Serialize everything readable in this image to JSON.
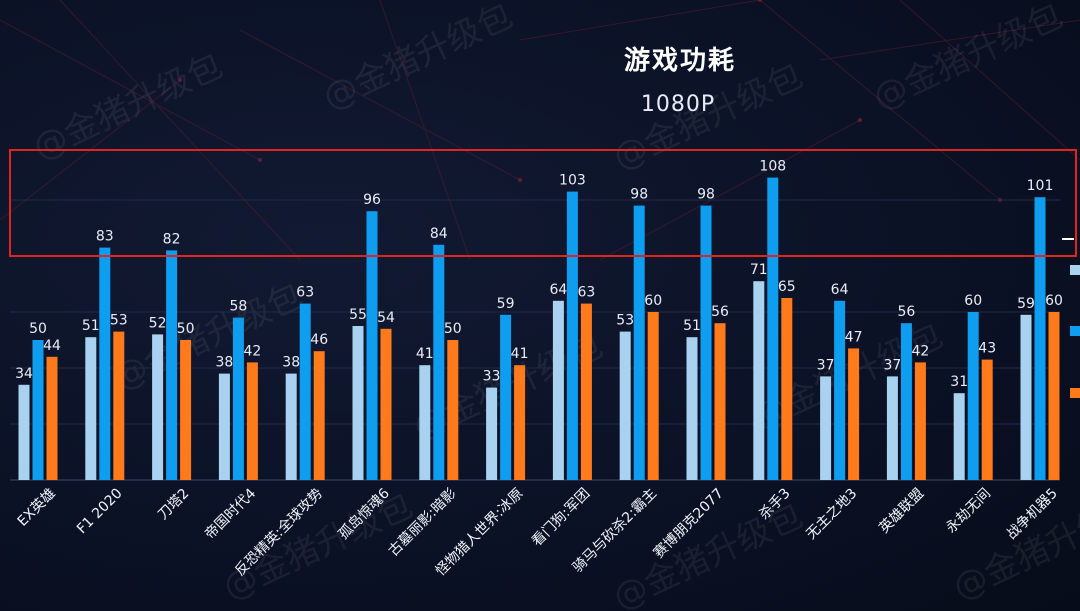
{
  "chart_data": {
    "type": "bar",
    "title": "游戏功耗",
    "subtitle": "1080P",
    "xlabel": "",
    "ylabel": "",
    "ylim": [
      0,
      150
    ],
    "grid": true,
    "categories": [
      "EX英雄",
      "F1 2020",
      "刀塔2",
      "帝国时代4",
      "反恐精英:全球攻势",
      "孤岛惊魂6",
      "古墓丽影:暗影",
      "怪物猎人世界:冰原",
      "看门狗:军团",
      "骑马与砍杀2:霸主",
      "赛博朋克2077",
      "杀手3",
      "无主之地3",
      "英雄联盟",
      "永劫无间",
      "战争机器5"
    ],
    "series": [
      {
        "values": [
          34,
          51,
          52,
          38,
          38,
          55,
          41,
          33,
          64,
          53,
          51,
          71,
          37,
          37,
          31,
          59
        ]
      },
      {
        "values": [
          50,
          83,
          82,
          58,
          63,
          96,
          84,
          59,
          103,
          98,
          98,
          108,
          64,
          56,
          60,
          101
        ]
      },
      {
        "values": [
          44,
          53,
          50,
          42,
          46,
          54,
          50,
          41,
          63,
          60,
          56,
          65,
          47,
          42,
          43,
          60
        ]
      }
    ],
    "colors": [
      "#a9d2f0",
      "#0f9df0",
      "#ff7a1a"
    ]
  },
  "watermark": "@金猪升级包"
}
